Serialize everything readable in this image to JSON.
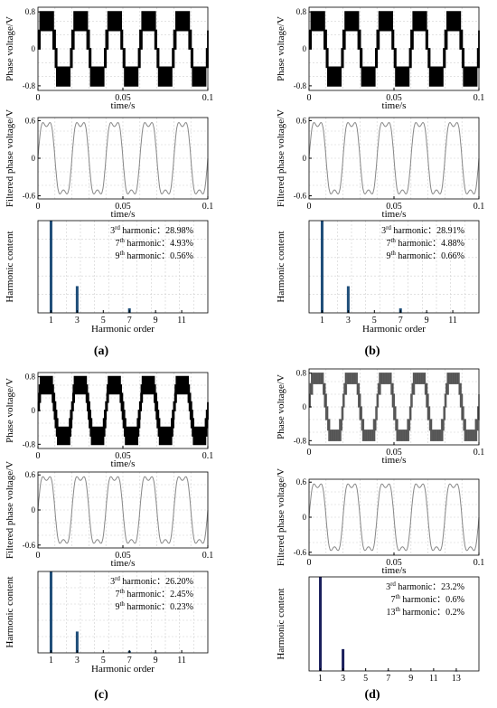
{
  "panels": [
    {
      "caption": "(a)",
      "phase": {
        "ylabel": "Phase voltage/V",
        "xlabel": "time/s",
        "yticks": [
          "0.8",
          "0",
          "-0.8"
        ],
        "xticks": [
          "0",
          "0.05",
          "0.1"
        ]
      },
      "filtered": {
        "ylabel": "Filtered phase voltage/V",
        "xlabel": "time/s",
        "yticks": [
          "0.6",
          "0",
          "-0.6"
        ],
        "xticks": [
          "0",
          "0.05",
          "0.1"
        ]
      },
      "spectrum": {
        "ylabel": "Harmonic content",
        "xlabel": "Harmonic order",
        "xticks": [
          "1",
          "3",
          "5",
          "7",
          "9",
          "11"
        ],
        "annotations": [
          {
            "order": "3",
            "sup": "rd",
            "suffix": " harmonic：",
            "value": "28.98%"
          },
          {
            "order": "7",
            "sup": "th",
            "suffix": " harmonic：",
            "value": "4.93%"
          },
          {
            "order": "9",
            "sup": "th",
            "suffix": " harmonic：",
            "value": "0.56%"
          }
        ]
      }
    },
    {
      "caption": "(b)",
      "phase": {
        "ylabel": "Phase voltage/V",
        "xlabel": "time/s",
        "yticks": [
          "0.8",
          "0",
          "-0.8"
        ],
        "xticks": [
          "0",
          "0.05",
          "0.1"
        ]
      },
      "filtered": {
        "ylabel": "Filtered phase voltage/V",
        "xlabel": "time/s",
        "yticks": [
          "0.6",
          "0",
          "-0.6"
        ],
        "xticks": [
          "0",
          "0.05",
          "0.1"
        ]
      },
      "spectrum": {
        "ylabel": "Harmonic content",
        "xlabel": "Harmonic order",
        "xticks": [
          "1",
          "3",
          "5",
          "7",
          "9",
          "11"
        ],
        "annotations": [
          {
            "order": "3",
            "sup": "rd",
            "suffix": " harmonic：",
            "value": "28.91%"
          },
          {
            "order": "7",
            "sup": "th",
            "suffix": " harmonic：",
            "value": "4.88%"
          },
          {
            "order": "9",
            "sup": "th",
            "suffix": " harmonic：",
            "value": "0.66%"
          }
        ]
      }
    },
    {
      "caption": "(c)",
      "phase": {
        "ylabel": "Phase voltage/V",
        "xlabel": "time/s",
        "yticks": [
          "0.8",
          "0",
          "-0.8"
        ],
        "xticks": [
          "0",
          "0.05",
          "0.1"
        ]
      },
      "filtered": {
        "ylabel": "Filtered phase voltage/V",
        "xlabel": "time/s",
        "yticks": [
          "0.6",
          "0",
          "-0.6"
        ],
        "xticks": [
          "0",
          "0.05",
          "0.1"
        ]
      },
      "spectrum": {
        "ylabel": "Harmonic content",
        "xlabel": "Harmonic order",
        "xticks": [
          "1",
          "3",
          "5",
          "7",
          "9",
          "11"
        ],
        "annotations": [
          {
            "order": "3",
            "sup": "rd",
            "suffix": " harmonic：",
            "value": "26.20%"
          },
          {
            "order": "7",
            "sup": "th",
            "suffix": " harmonic：",
            "value": "2.45%"
          },
          {
            "order": "9",
            "sup": "th",
            "suffix": " harmonic：",
            "value": "0.23%"
          }
        ]
      }
    },
    {
      "caption": "(d)",
      "phase": {
        "ylabel": "Phase voltage/V",
        "xlabel": "time/s",
        "yticks": [
          "0.8",
          "0",
          "-0.8"
        ],
        "xticks": [
          "0",
          "0.05",
          "0.1"
        ]
      },
      "filtered": {
        "ylabel": "Filtered phase voltage/V",
        "xlabel": "time/s",
        "yticks": [
          "0.6",
          "0",
          "-0.6"
        ],
        "xticks": [
          "0",
          "0.05",
          "0.1"
        ]
      },
      "spectrum": {
        "ylabel": "Harmonic content",
        "xlabel": "Harmonic order",
        "xticks": [
          "1",
          "3",
          "5",
          "7",
          "9",
          "11",
          "13"
        ],
        "annotations": [
          {
            "order": "3",
            "sup": "rd",
            "suffix": " harmonic：",
            "value": "23.2%"
          },
          {
            "order": "7",
            "sup": "th",
            "suffix": " harmonic：",
            "value": "0.6%"
          },
          {
            "order": "13",
            "sup": "th",
            "suffix": " harmonic：",
            "value": "0.2%"
          }
        ]
      }
    }
  ],
  "chart_data": [
    {
      "type": "line",
      "panel": "a",
      "plot": "phase",
      "xlabel": "time/s",
      "ylabel": "Phase voltage/V",
      "xlim": [
        0,
        0.1
      ],
      "ylim": [
        -0.9,
        0.9
      ],
      "frequency_hz": 50,
      "levels": [
        0.8,
        0.4,
        0.0,
        -0.4,
        -0.8
      ],
      "color": "#000000",
      "grid": true
    },
    {
      "type": "line",
      "panel": "a",
      "plot": "filtered",
      "xlabel": "time/s",
      "ylabel": "Filtered phase voltage/V",
      "xlim": [
        0,
        0.1
      ],
      "ylim": [
        -0.65,
        0.65
      ],
      "frequency_hz": 50,
      "peak": 0.58,
      "color": "#888888",
      "grid": true
    },
    {
      "type": "bar",
      "panel": "a",
      "plot": "spectrum",
      "xlabel": "Harmonic order",
      "ylabel": "Harmonic content",
      "x": [
        1,
        3,
        7,
        9
      ],
      "values": [
        100,
        28.98,
        4.93,
        0.56
      ],
      "ylim": [
        0,
        100
      ],
      "xlim": [
        0,
        13
      ],
      "color": "#1f4e79",
      "grid": true
    },
    {
      "type": "line",
      "panel": "b",
      "plot": "phase",
      "xlabel": "time/s",
      "ylabel": "Phase voltage/V",
      "xlim": [
        0,
        0.1
      ],
      "ylim": [
        -0.9,
        0.9
      ],
      "frequency_hz": 50,
      "levels": [
        0.8,
        0.4,
        0.0,
        -0.4,
        -0.8
      ],
      "color": "#000000",
      "grid": true
    },
    {
      "type": "line",
      "panel": "b",
      "plot": "filtered",
      "xlabel": "time/s",
      "ylabel": "Filtered phase voltage/V",
      "xlim": [
        0,
        0.1
      ],
      "ylim": [
        -0.65,
        0.65
      ],
      "frequency_hz": 50,
      "peak": 0.58,
      "color": "#888888",
      "grid": true
    },
    {
      "type": "bar",
      "panel": "b",
      "plot": "spectrum",
      "xlabel": "Harmonic order",
      "ylabel": "Harmonic content",
      "x": [
        1,
        3,
        7,
        9
      ],
      "values": [
        100,
        28.91,
        4.88,
        0.66
      ],
      "ylim": [
        0,
        100
      ],
      "xlim": [
        0,
        13
      ],
      "color": "#1f4e79",
      "grid": true
    },
    {
      "type": "line",
      "panel": "c",
      "plot": "phase",
      "xlabel": "time/s",
      "ylabel": "Phase voltage/V",
      "xlim": [
        0,
        0.1
      ],
      "ylim": [
        -0.9,
        0.9
      ],
      "frequency_hz": 50,
      "levels": [
        0.8,
        0.6,
        0.4,
        0.2,
        0.0,
        -0.2,
        -0.4,
        -0.6,
        -0.8
      ],
      "color": "#000000",
      "grid": true
    },
    {
      "type": "line",
      "panel": "c",
      "plot": "filtered",
      "xlabel": "time/s",
      "ylabel": "Filtered phase voltage/V",
      "xlim": [
        0,
        0.1
      ],
      "ylim": [
        -0.65,
        0.65
      ],
      "frequency_hz": 50,
      "peak": 0.58,
      "color": "#888888",
      "grid": true
    },
    {
      "type": "bar",
      "panel": "c",
      "plot": "spectrum",
      "xlabel": "Harmonic order",
      "ylabel": "Harmonic content",
      "x": [
        1,
        3,
        7,
        9
      ],
      "values": [
        100,
        26.2,
        2.45,
        0.23
      ],
      "ylim": [
        0,
        100
      ],
      "xlim": [
        0,
        13
      ],
      "color": "#1f4e79",
      "grid": true
    },
    {
      "type": "line",
      "panel": "d",
      "plot": "phase",
      "xlabel": "time/s",
      "ylabel": "Phase voltage/V",
      "xlim": [
        0,
        0.1
      ],
      "ylim": [
        -0.9,
        0.9
      ],
      "frequency_hz": 50,
      "levels": [
        0.8,
        0.55,
        0.3,
        0.0,
        -0.3,
        -0.55,
        -0.8
      ],
      "color": "#777777",
      "grid": true
    },
    {
      "type": "line",
      "panel": "d",
      "plot": "filtered",
      "xlabel": "time/s",
      "ylabel": "Filtered phase voltage/V",
      "xlim": [
        0,
        0.1
      ],
      "ylim": [
        -0.65,
        0.65
      ],
      "frequency_hz": 50,
      "peak": 0.58,
      "color": "#888888",
      "grid": true
    },
    {
      "type": "bar",
      "panel": "d",
      "plot": "spectrum",
      "xlabel": "Harmonic order",
      "ylabel": "Harmonic content",
      "x": [
        1,
        3,
        7,
        13
      ],
      "values": [
        100,
        23.2,
        0.6,
        0.2
      ],
      "ylim": [
        0,
        100
      ],
      "xlim": [
        0,
        15
      ],
      "color": "#1a1f5c",
      "grid": false
    }
  ]
}
